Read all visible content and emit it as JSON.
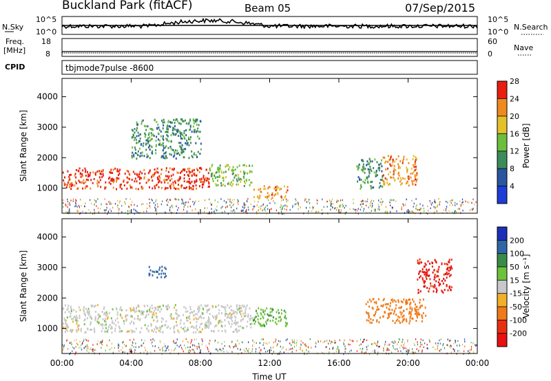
{
  "header": {
    "station": "Buckland Park (fitACF)",
    "beam": "Beam 05",
    "date": "07/Sep/2015"
  },
  "panels": {
    "nsky": {
      "label": "N.Sky",
      "left_top": "10^5",
      "left_bottom": "10^0",
      "right_label": "N.Search",
      "right_top": "10^5",
      "right_bottom": "10^0"
    },
    "freq": {
      "label_line1": "Freq.",
      "label_line2": "[MHz]",
      "left_top": "18",
      "left_bottom": "8",
      "right_label": "Nave",
      "right_top": "60",
      "right_bottom": "0"
    },
    "cpid": {
      "label": "CPID",
      "text": "tbjmode7pulse  -8600"
    }
  },
  "chart_data": [
    {
      "type": "heatmap",
      "name": "power",
      "ylabel": "Slant Range [km]",
      "xlabel": "",
      "y_ticks": [
        1000,
        2000,
        3000,
        4000
      ],
      "ylim": [
        180,
        4600
      ],
      "colorbar": {
        "label": "Power [dB]",
        "ticks": [
          "4",
          "8",
          "12",
          "16",
          "20",
          "24",
          "28"
        ],
        "colors": [
          "#1e3cd6",
          "#2a56a0",
          "#3d8a5a",
          "#6bbf3c",
          "#e3c12a",
          "#f08a1e",
          "#e81e10"
        ]
      },
      "regions": [
        {
          "t_start": "00:00",
          "t_end": "08:30",
          "range_low": 1000,
          "range_high": 1700,
          "power_db": 28
        },
        {
          "t_start": "08:30",
          "t_end": "11:00",
          "range_low": 1100,
          "range_high": 1800,
          "power_db": 16
        },
        {
          "t_start": "11:00",
          "t_end": "13:00",
          "range_low": 700,
          "range_high": 1100,
          "power_db": 24
        },
        {
          "t_start": "04:00",
          "t_end": "08:00",
          "range_low": 2000,
          "range_high": 3300,
          "power_db": 12
        },
        {
          "t_start": "17:00",
          "t_end": "18:30",
          "range_low": 1000,
          "range_high": 2000,
          "power_db": 12
        },
        {
          "t_start": "18:30",
          "t_end": "20:30",
          "range_low": 1100,
          "range_high": 2100,
          "power_db": 24
        }
      ]
    },
    {
      "type": "heatmap",
      "name": "velocity",
      "ylabel": "Slant Range [km]",
      "xlabel": "Time UT",
      "x_ticks": [
        "00:00",
        "04:00",
        "08:00",
        "12:00",
        "16:00",
        "20:00",
        "00:00"
      ],
      "y_ticks": [
        1000,
        2000,
        3000,
        4000
      ],
      "ylim": [
        180,
        4600
      ],
      "colorbar": {
        "label": "Velocity [m s⁻¹]",
        "ticks": [
          "200",
          "100",
          "50",
          "15",
          "-15",
          "-50",
          "-100",
          "-200"
        ],
        "colors": [
          "#1b2fb8",
          "#2f67a6",
          "#3a8a4a",
          "#6cc23a",
          "#c8c8c8",
          "#f0b02a",
          "#f07a18",
          "#e83010",
          "#e81010"
        ]
      },
      "regions": [
        {
          "t_start": "00:00",
          "t_end": "11:00",
          "range_low": 900,
          "range_high": 1800,
          "velocity": 0
        },
        {
          "t_start": "11:00",
          "t_end": "13:00",
          "range_low": 1100,
          "range_high": 1700,
          "velocity": 40
        },
        {
          "t_start": "05:00",
          "t_end": "06:00",
          "range_low": 2700,
          "range_high": 3100,
          "velocity": 150
        },
        {
          "t_start": "17:30",
          "t_end": "21:00",
          "range_low": 1200,
          "range_high": 2000,
          "velocity": -80
        },
        {
          "t_start": "20:30",
          "t_end": "22:30",
          "range_low": 2200,
          "range_high": 3300,
          "velocity": -200
        }
      ]
    }
  ]
}
